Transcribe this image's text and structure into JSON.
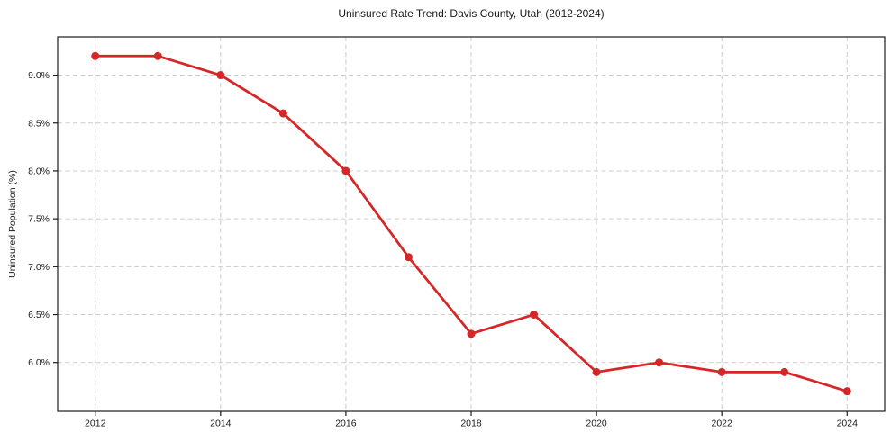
{
  "chart_data": {
    "type": "line",
    "title": "Uninsured Rate Trend: Davis County, Utah (2012-2024)",
    "xlabel": "",
    "ylabel": "Uninsured Population (%)",
    "x": [
      2012,
      2013,
      2014,
      2015,
      2016,
      2017,
      2018,
      2019,
      2020,
      2021,
      2022,
      2023,
      2024
    ],
    "values": [
      9.2,
      9.2,
      9.0,
      8.6,
      8.0,
      7.1,
      6.3,
      6.5,
      5.9,
      6.0,
      5.9,
      5.9,
      5.7
    ],
    "xlim": [
      2011.4,
      2024.6
    ],
    "ylim": [
      5.49,
      9.4
    ],
    "xticks": [
      2012,
      2014,
      2016,
      2018,
      2020,
      2022,
      2024
    ],
    "xtick_labels": [
      "2012",
      "2014",
      "2016",
      "2018",
      "2020",
      "2022",
      "2024"
    ],
    "yticks": [
      6.0,
      6.5,
      7.0,
      7.5,
      8.0,
      8.5,
      9.0
    ],
    "ytick_labels": [
      "6.0%",
      "6.5%",
      "7.0%",
      "7.5%",
      "8.0%",
      "8.5%",
      "9.0%"
    ],
    "grid": true,
    "legend": "none",
    "line_color": "#d62728",
    "grid_color": "#cccccc",
    "spine_color": "#1a1a1a",
    "background_color": "#ffffff"
  }
}
